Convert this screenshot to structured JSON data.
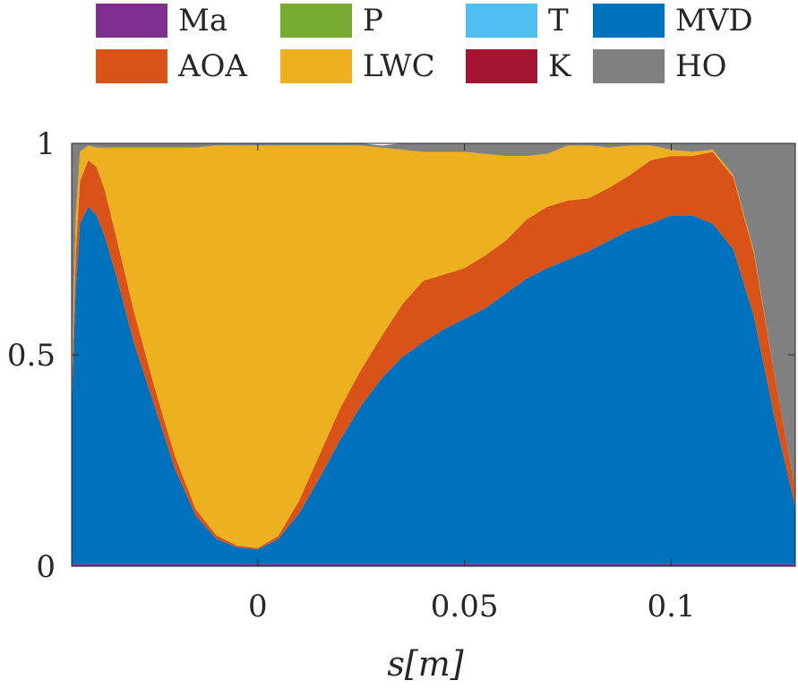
{
  "chart_data": {
    "type": "area",
    "stacked": true,
    "normalized": true,
    "xlabel": "s[m]",
    "ylabel": "",
    "title": "",
    "xlim": [
      -0.045,
      0.13
    ],
    "ylim": [
      0,
      1
    ],
    "xticks": [
      0,
      0.05,
      0.1
    ],
    "xtick_labels": [
      "0",
      "0.05",
      "0.1"
    ],
    "yticks": [
      0,
      0.5,
      1
    ],
    "ytick_labels": [
      "0",
      "0.5",
      "1"
    ],
    "grid": false,
    "legend_position": "top",
    "legend_columns": 4,
    "legend": [
      {
        "name": "Ma",
        "color": "#7E2F8E"
      },
      {
        "name": "P",
        "color": "#77AC30"
      },
      {
        "name": "T",
        "color": "#4DBEEE"
      },
      {
        "name": "MVD",
        "color": "#0072BD"
      },
      {
        "name": "AOA",
        "color": "#D95319"
      },
      {
        "name": "LWC",
        "color": "#EDB120"
      },
      {
        "name": "K",
        "color": "#A2142F"
      },
      {
        "name": "HO",
        "color": "#808080"
      }
    ],
    "x": [
      -0.045,
      -0.044,
      -0.043,
      -0.041,
      -0.039,
      -0.037,
      -0.034,
      -0.03,
      -0.025,
      -0.02,
      -0.015,
      -0.01,
      -0.005,
      0,
      0.005,
      0.01,
      0.015,
      0.02,
      0.025,
      0.03,
      0.035,
      0.04,
      0.045,
      0.05,
      0.055,
      0.06,
      0.065,
      0.07,
      0.075,
      0.08,
      0.085,
      0.09,
      0.095,
      0.1,
      0.105,
      0.11,
      0.115,
      0.12,
      0.125,
      0.13
    ],
    "series": [
      {
        "name": "Ma",
        "color": "#7E2F8E",
        "values": [
          0.005,
          0.005,
          0.005,
          0.005,
          0.005,
          0.005,
          0.005,
          0.005,
          0.005,
          0.005,
          0.005,
          0.005,
          0.005,
          0.005,
          0.005,
          0.005,
          0.005,
          0.005,
          0.005,
          0.005,
          0.005,
          0.005,
          0.005,
          0.005,
          0.005,
          0.005,
          0.005,
          0.005,
          0.005,
          0.005,
          0.005,
          0.005,
          0.005,
          0.005,
          0.005,
          0.005,
          0.005,
          0.005,
          0.005,
          0.005
        ]
      },
      {
        "name": "P",
        "color": "#77AC30",
        "values": [
          0,
          0,
          0,
          0,
          0,
          0,
          0,
          0,
          0,
          0,
          0,
          0,
          0,
          0,
          0,
          0,
          0,
          0,
          0,
          0,
          0,
          0,
          0,
          0,
          0,
          0,
          0,
          0,
          0,
          0,
          0,
          0,
          0,
          0,
          0,
          0,
          0,
          0,
          0,
          0
        ]
      },
      {
        "name": "T",
        "color": "#4DBEEE",
        "values": [
          0,
          0,
          0,
          0,
          0,
          0,
          0,
          0,
          0,
          0,
          0,
          0,
          0,
          0,
          0,
          0,
          0,
          0,
          0,
          0,
          0,
          0,
          0,
          0,
          0,
          0,
          0,
          0,
          0,
          0,
          0,
          0,
          0,
          0,
          0,
          0,
          0,
          0,
          0,
          0
        ]
      },
      {
        "name": "MVD",
        "color": "#0072BD",
        "values": [
          0.375,
          0.655,
          0.805,
          0.845,
          0.825,
          0.775,
          0.675,
          0.525,
          0.375,
          0.225,
          0.115,
          0.06,
          0.04,
          0.035,
          0.06,
          0.12,
          0.205,
          0.295,
          0.375,
          0.44,
          0.49,
          0.525,
          0.555,
          0.58,
          0.605,
          0.64,
          0.675,
          0.7,
          0.72,
          0.74,
          0.765,
          0.79,
          0.805,
          0.825,
          0.825,
          0.805,
          0.745,
          0.585,
          0.345,
          0.135
        ]
      },
      {
        "name": "AOA",
        "color": "#D95319",
        "values": [
          0.05,
          0.08,
          0.1,
          0.11,
          0.115,
          0.11,
          0.09,
          0.075,
          0.045,
          0.03,
          0.015,
          0.008,
          0.004,
          0.003,
          0.007,
          0.03,
          0.055,
          0.075,
          0.085,
          0.1,
          0.125,
          0.145,
          0.13,
          0.12,
          0.125,
          0.125,
          0.14,
          0.145,
          0.14,
          0.125,
          0.125,
          0.13,
          0.15,
          0.14,
          0.14,
          0.17,
          0.17,
          0.15,
          0.1,
          0.04
        ]
      },
      {
        "name": "LWC",
        "color": "#EDB120",
        "values": [
          0.025,
          0.085,
          0.07,
          0.035,
          0.045,
          0.1,
          0.22,
          0.385,
          0.565,
          0.73,
          0.855,
          0.922,
          0.946,
          0.952,
          0.923,
          0.84,
          0.73,
          0.62,
          0.53,
          0.445,
          0.365,
          0.305,
          0.29,
          0.275,
          0.24,
          0.2,
          0.15,
          0.125,
          0.13,
          0.125,
          0.095,
          0.07,
          0.035,
          0.015,
          0.01,
          0.005,
          0.005,
          0.005,
          0,
          0
        ]
      },
      {
        "name": "K",
        "color": "#A2142F",
        "values": [
          0,
          0,
          0,
          0,
          0,
          0,
          0,
          0,
          0,
          0,
          0,
          0,
          0,
          0,
          0,
          0,
          0,
          0,
          0,
          0,
          0,
          0,
          0,
          0,
          0,
          0,
          0,
          0,
          0,
          0,
          0,
          0,
          0,
          0,
          0,
          0,
          0,
          0,
          0,
          0
        ]
      },
      {
        "name": "HO",
        "color": "#808080",
        "values": [
          0.545,
          0.175,
          0.02,
          0.005,
          0.01,
          0.01,
          0.01,
          0.01,
          0.01,
          0.01,
          0.01,
          0.005,
          0.005,
          0.005,
          0.005,
          0.005,
          0.005,
          0.005,
          0.005,
          0.005,
          0.015,
          0.02,
          0.02,
          0.02,
          0.025,
          0.03,
          0.03,
          0.025,
          0.005,
          0.005,
          0.01,
          0.005,
          0.005,
          0.015,
          0.02,
          0.015,
          0.075,
          0.255,
          0.55,
          0.82
        ]
      }
    ]
  }
}
